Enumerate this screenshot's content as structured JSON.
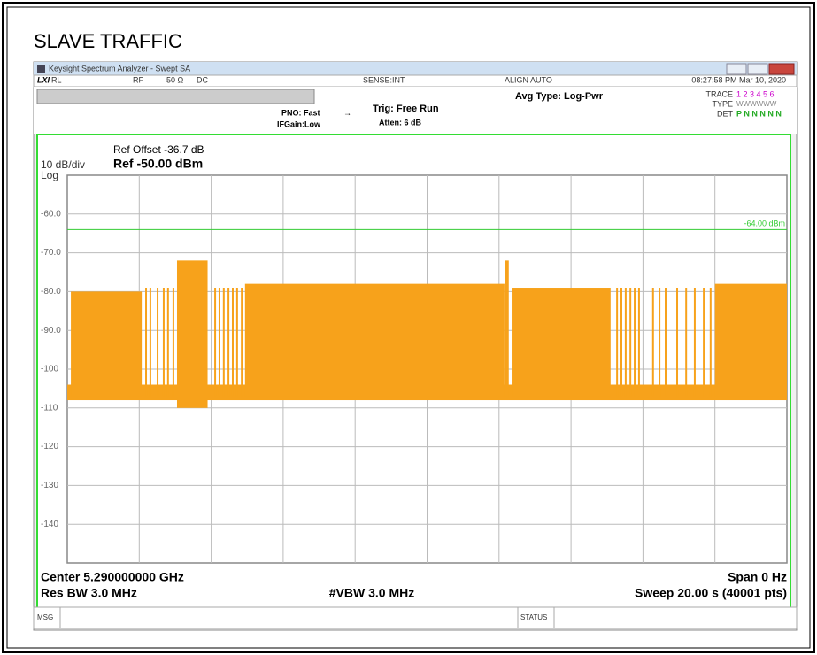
{
  "header": {
    "title": "SLAVE TRAFFIC"
  },
  "window": {
    "title": "Keysight Spectrum Analyzer - Swept SA"
  },
  "status_row": {
    "rl": "RL",
    "rf": "RF",
    "impedance": "50 Ω",
    "coupling": "DC",
    "sense": "SENSE:INT",
    "align": "ALIGN AUTO",
    "clock": "08:27:58 PM Mar 10, 2020"
  },
  "info": {
    "avg_type": "Avg Type: Log-Pwr",
    "pno": "PNO: Fast",
    "ifgain": "IFGain:Low",
    "trig": "Trig: Free Run",
    "atten": "Atten: 6 dB",
    "trace_label": "TRACE",
    "trace_numbers": "1 2 3 4 5 6",
    "type_label": "TYPE",
    "type_value": "WWWWWW",
    "det_label": "DET",
    "det_value": "P N N N N N"
  },
  "chart_data": {
    "type": "spectrum",
    "ref_offset": "Ref Offset -36.7 dB",
    "ref_level": "Ref -50.00 dBm",
    "scale": "10 dB/div",
    "scale_type": "Log",
    "ylim": [
      -150,
      -50
    ],
    "yticks": [
      {
        "value": -60,
        "label": "-60.0"
      },
      {
        "value": -70,
        "label": "-70.0"
      },
      {
        "value": -80,
        "label": "-80.0"
      },
      {
        "value": -90,
        "label": "-90.0"
      },
      -100,
      -110,
      -120,
      -130,
      -140
    ],
    "xlim": [
      0,
      20
    ],
    "xgrid": [
      2,
      4,
      6,
      8,
      10,
      12,
      14,
      16,
      18
    ],
    "display_line": {
      "value": -64,
      "label": "-64.00 dBm",
      "color": "#33cc33"
    },
    "trace": {
      "color": "#f7a21b",
      "floor": {
        "start": 0,
        "end": 20,
        "top": -104,
        "bottom": -108
      },
      "segments": [
        {
          "start": 0.1,
          "end": 2.07,
          "top": -80,
          "bottom": -107
        },
        {
          "start": 3.05,
          "end": 3.9,
          "top": -72,
          "bottom": -110
        },
        {
          "start": 4.94,
          "end": 12.15,
          "top": -78,
          "bottom": -107
        },
        {
          "start": 12.17,
          "end": 12.27,
          "top": -72,
          "bottom": -107
        },
        {
          "start": 12.35,
          "end": 15.1,
          "top": -79,
          "bottom": -107
        },
        {
          "start": 18.0,
          "end": 20,
          "top": -78,
          "bottom": -107
        }
      ],
      "bursts": {
        "top": -79,
        "bottom": -107,
        "times": [
          2.19,
          2.31,
          2.51,
          2.68,
          2.8,
          2.95,
          4.11,
          4.23,
          4.35,
          4.48,
          4.6,
          4.72,
          4.85,
          15.28,
          15.4,
          15.52,
          15.65,
          15.77,
          15.89,
          16.28,
          16.46,
          16.63,
          16.95,
          17.2,
          17.44,
          17.69,
          17.88
        ]
      }
    },
    "center": "Center 5.290000000 GHz",
    "span": "Span 0 Hz",
    "res_bw": "Res BW 3.0 MHz",
    "vbw": "#VBW 3.0 MHz",
    "sweep": "Sweep  20.00 s (40001 pts)"
  },
  "footer": {
    "msg": "MSG",
    "status": "STATUS"
  }
}
